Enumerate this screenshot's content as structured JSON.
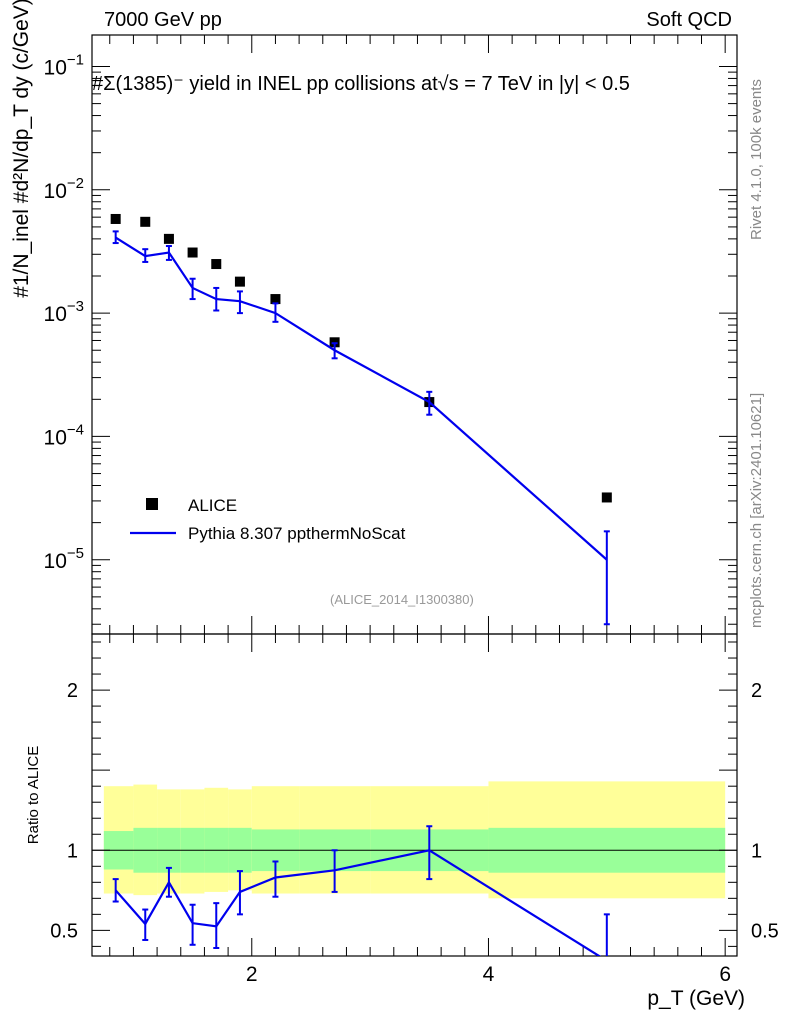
{
  "header": {
    "left": "7000 GeV pp",
    "right": "Soft QCD"
  },
  "side_labels": {
    "rivet": "Rivet 4.1.0,  100k events",
    "mcplots": "mcplots.cern.ch [arXiv:2401.10621]"
  },
  "watermark": "(ALICE_2014_I1300380)",
  "colors": {
    "mc": "#0000ee",
    "data": "#000000",
    "band_inner": "#99ff99",
    "band_outer": "#ffff99"
  },
  "chart_data": [
    {
      "type": "scatter",
      "panel": "main",
      "title": "#Σ(1385)⁻  yield in INEL pp collisions at√s = 7 TeV in |y| < 0.5",
      "ylabel": "#1/N_inel #d²N/dp_T dy (c/GeV)",
      "yscale": "log",
      "ylim": [
        2.5e-06,
        0.18
      ],
      "xlim": [
        0.65,
        6.1
      ],
      "y_ticks": [
        {
          "value": 1e-05,
          "base": "10",
          "exp": "−5"
        },
        {
          "value": 0.0001,
          "base": "10",
          "exp": "−4"
        },
        {
          "value": 0.001,
          "base": "10",
          "exp": "−3"
        },
        {
          "value": 0.01,
          "base": "10",
          "exp": "−2"
        },
        {
          "value": 0.1,
          "base": "10",
          "exp": "−1"
        }
      ],
      "legend": {
        "placement": "bottom-left",
        "entries": [
          "ALICE",
          "Pythia 8.307 ppthermNoScat"
        ]
      },
      "series": [
        {
          "name": "ALICE",
          "kind": "points",
          "x": [
            0.85,
            1.1,
            1.3,
            1.5,
            1.7,
            1.9,
            2.2,
            2.7,
            3.5,
            5.0
          ],
          "y": [
            0.0058,
            0.0055,
            0.004,
            0.0031,
            0.0025,
            0.0018,
            0.0013,
            0.00058,
            0.00019,
            3.2e-05
          ]
        },
        {
          "name": "Pythia 8.307 ppthermNoScat",
          "kind": "line",
          "x": [
            0.85,
            1.1,
            1.3,
            1.5,
            1.7,
            1.9,
            2.2,
            2.7,
            3.5,
            5.0
          ],
          "y": [
            0.0041,
            0.0029,
            0.0031,
            0.0016,
            0.0013,
            0.00125,
            0.001,
            0.0005,
            0.00019,
            1e-05
          ],
          "err_lo": [
            0.0037,
            0.0026,
            0.0027,
            0.0013,
            0.00105,
            0.001,
            0.00085,
            0.00043,
            0.00015,
            3e-06
          ],
          "err_hi": [
            0.0046,
            0.0033,
            0.0035,
            0.0019,
            0.0016,
            0.0015,
            0.0012,
            0.00057,
            0.00023,
            1.7e-05
          ]
        }
      ]
    },
    {
      "type": "line",
      "panel": "ratio",
      "ylabel": "Ratio to ALICE",
      "xlabel": "p_T (GeV)",
      "ylim": [
        0.34,
        2.35
      ],
      "xlim": [
        0.65,
        6.1
      ],
      "x_ticks": [
        2,
        4,
        6
      ],
      "y_ticks": [
        0.5,
        1,
        2
      ],
      "bands": {
        "edges": [
          0.75,
          1.0,
          1.2,
          1.4,
          1.6,
          1.8,
          2.0,
          2.4,
          3.0,
          4.0,
          6.0
        ],
        "inner_lo": [
          0.88,
          0.86,
          0.86,
          0.86,
          0.86,
          0.86,
          0.87,
          0.87,
          0.87,
          0.86
        ],
        "inner_hi": [
          1.12,
          1.14,
          1.14,
          1.14,
          1.14,
          1.14,
          1.13,
          1.13,
          1.13,
          1.14
        ],
        "outer_lo": [
          0.73,
          0.72,
          0.73,
          0.73,
          0.74,
          0.75,
          0.73,
          0.73,
          0.73,
          0.7
        ],
        "outer_hi": [
          1.4,
          1.41,
          1.38,
          1.38,
          1.39,
          1.38,
          1.4,
          1.4,
          1.4,
          1.43
        ]
      },
      "series": [
        {
          "name": "Pythia 8.307 ppthermNoScat / ALICE",
          "x": [
            0.85,
            1.1,
            1.3,
            1.5,
            1.7,
            1.9,
            2.2,
            2.7,
            3.5,
            5.0
          ],
          "y": [
            0.75,
            0.54,
            0.8,
            0.545,
            0.525,
            0.74,
            0.83,
            0.875,
            1.0,
            0.31
          ],
          "err_lo": [
            0.68,
            0.44,
            0.71,
            0.41,
            0.39,
            0.6,
            0.71,
            0.74,
            0.82,
            0.1
          ],
          "err_hi": [
            0.82,
            0.63,
            0.89,
            0.66,
            0.67,
            0.87,
            0.93,
            1.0,
            1.15,
            0.6
          ]
        }
      ]
    }
  ]
}
